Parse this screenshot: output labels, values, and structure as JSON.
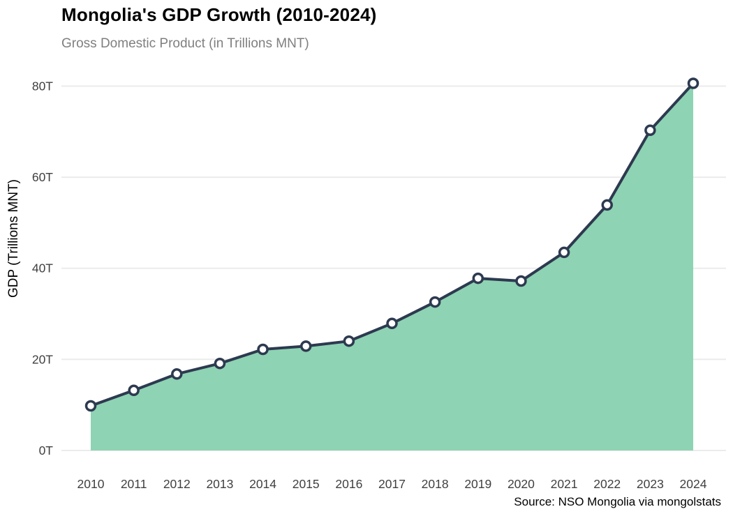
{
  "header": {
    "title": "Mongolia's GDP Growth (2010-2024)",
    "subtitle": "Gross Domestic Product (in Trillions MNT)"
  },
  "footer": {
    "source": "Source: NSO Mongolia via mongolstats"
  },
  "chart_data": {
    "type": "area",
    "title": "Mongolia's GDP Growth (2010-2024)",
    "subtitle": "Gross Domestic Product (in Trillions MNT)",
    "xlabel": "",
    "ylabel": "GDP (Trillions MNT)",
    "categories": [
      "2010",
      "2011",
      "2012",
      "2013",
      "2014",
      "2015",
      "2016",
      "2017",
      "2018",
      "2019",
      "2020",
      "2021",
      "2022",
      "2023",
      "2024"
    ],
    "series": [
      {
        "name": "GDP (Trillions MNT)",
        "values": [
          9.8,
          13.2,
          16.8,
          19.1,
          22.2,
          22.9,
          24.0,
          27.9,
          32.6,
          37.8,
          37.2,
          43.5,
          53.9,
          70.3,
          80.6
        ]
      }
    ],
    "ylim": [
      0,
      83.5
    ],
    "yticks": [
      0,
      20,
      40,
      60,
      80
    ],
    "ytick_labels": [
      "0T",
      "20T",
      "40T",
      "60T",
      "80T"
    ],
    "grid": "horizontal",
    "legend": "none",
    "marker": "open-circle",
    "colors": {
      "area_fill": "#8ed3b3",
      "line": "#2d3a50",
      "marker_fill": "#ffffff",
      "marker_stroke": "#2d3a50",
      "gridline": "#ebebeb",
      "tick_label": "#404040",
      "axis_title": "#000000",
      "title": "#000000",
      "subtitle": "#7f7f7f"
    }
  }
}
